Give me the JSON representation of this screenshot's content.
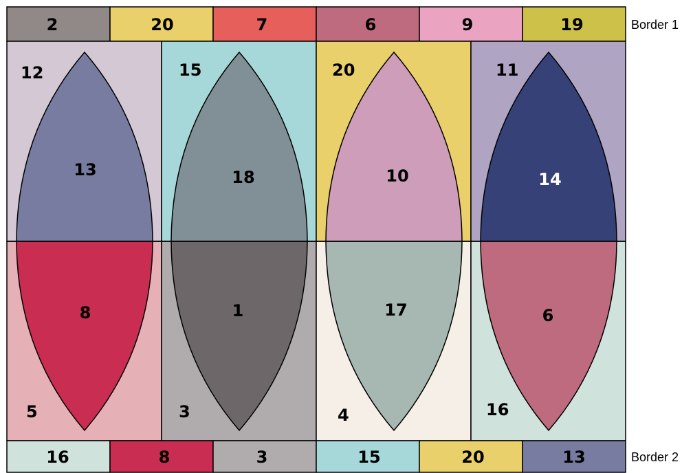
{
  "border_top": {
    "label": "Border 1",
    "cells": [
      {
        "value": "2",
        "color": "#918888"
      },
      {
        "value": "20",
        "color": "#ead06a"
      },
      {
        "value": "7",
        "color": "#e65f5a"
      },
      {
        "value": "6",
        "color": "#bf6b7f"
      },
      {
        "value": "9",
        "color": "#eaa4c2"
      },
      {
        "value": "19",
        "color": "#cdc14a"
      }
    ]
  },
  "border_bottom": {
    "label": "Border 2",
    "cells": [
      {
        "value": "16",
        "color": "#cfe2db"
      },
      {
        "value": "8",
        "color": "#c92d52"
      },
      {
        "value": "3",
        "color": "#b0acad"
      },
      {
        "value": "15",
        "color": "#a6d8d9"
      },
      {
        "value": "20",
        "color": "#ead06a"
      },
      {
        "value": "13",
        "color": "#777ca0"
      }
    ]
  },
  "panels": [
    {
      "top_bg": {
        "value": "12",
        "color": "#d3c8d3"
      },
      "bottom_bg": {
        "value": "5",
        "color": "#e6b1b6"
      },
      "petal_top": {
        "value": "13",
        "color": "#777ca0",
        "text_color": "#000000"
      },
      "petal_bottom": {
        "value": "8",
        "color": "#c92d52",
        "text_color": "#000000"
      }
    },
    {
      "top_bg": {
        "value": "15",
        "color": "#a6d8d9"
      },
      "bottom_bg": {
        "value": "3",
        "color": "#b0acad"
      },
      "petal_top": {
        "value": "18",
        "color": "#818f96",
        "text_color": "#000000"
      },
      "petal_bottom": {
        "value": "1",
        "color": "#6d6769",
        "text_color": "#000000"
      }
    },
    {
      "top_bg": {
        "value": "20",
        "color": "#ead06a"
      },
      "bottom_bg": {
        "value": "4",
        "color": "#f6efe8"
      },
      "petal_top": {
        "value": "10",
        "color": "#cd9db9",
        "text_color": "#000000"
      },
      "petal_bottom": {
        "value": "17",
        "color": "#a7b8b3",
        "text_color": "#000000"
      }
    },
    {
      "top_bg": {
        "value": "11",
        "color": "#b0a4c3"
      },
      "bottom_bg": {
        "value": "16",
        "color": "#cfe2db"
      },
      "petal_top": {
        "value": "14",
        "color": "#364177",
        "text_color": "#ffffff"
      },
      "petal_bottom": {
        "value": "6",
        "color": "#bf6b7f",
        "text_color": "#000000"
      }
    }
  ]
}
